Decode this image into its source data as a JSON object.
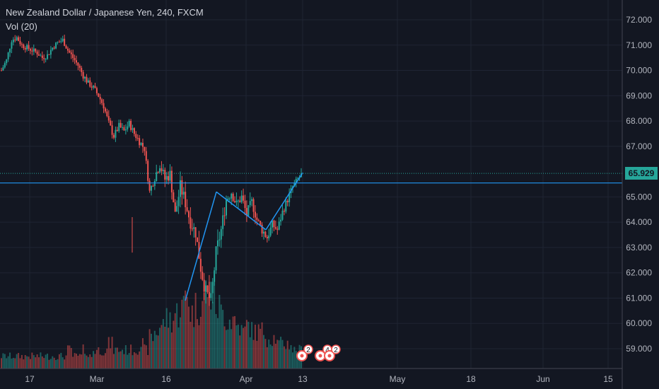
{
  "legend": {
    "title": "New Zealand Dollar / Japanese Yen, 240, FXCM",
    "volume": "Vol (20)"
  },
  "price_label": {
    "value": "65.929",
    "color": "#26a69a"
  },
  "events": {
    "badge1": "2",
    "badge2": "4",
    "badge3": "2"
  },
  "colors": {
    "up": "#26a69a",
    "down": "#ef5350",
    "background": "#131722",
    "grid": "#1f2433",
    "line": "#2196f3"
  },
  "chart_data": {
    "type": "candlestick",
    "title": "New Zealand Dollar / Japanese Yen, 240, FXCM",
    "y_axis": {
      "ticks": [
        "72.000",
        "71.000",
        "70.000",
        "69.000",
        "68.000",
        "67.000",
        "65.000",
        "64.000",
        "63.000",
        "62.000",
        "61.000",
        "60.000",
        "59.000"
      ],
      "range": [
        58.5,
        72.5
      ]
    },
    "x_axis": {
      "ticks": [
        "17",
        "Mar",
        "16",
        "Apr",
        "13",
        "May",
        "18",
        "Jun",
        "15"
      ]
    },
    "last_price": 65.929,
    "horizontal_line": 65.55,
    "trend_lines": [
      {
        "points": [
          [
            61.0,
            "Mar 19"
          ],
          [
            65.2,
            "Mar 24"
          ]
        ]
      },
      {
        "points": [
          [
            65.2,
            "Mar 24"
          ],
          [
            63.7,
            "Apr 6"
          ]
        ]
      },
      {
        "points": [
          [
            63.7,
            "Apr 6"
          ],
          [
            65.95,
            "Apr 13"
          ]
        ]
      }
    ],
    "close_series": [
      70.0,
      70.4,
      71.2,
      71.3,
      71.0,
      70.9,
      70.8,
      70.7,
      70.5,
      70.6,
      70.9,
      71.1,
      71.2,
      70.8,
      70.5,
      70.2,
      69.8,
      69.5,
      69.3,
      69.0,
      68.6,
      67.9,
      67.4,
      67.8,
      67.6,
      67.9,
      67.5,
      67.2,
      66.9,
      65.2,
      65.8,
      66.3,
      65.7,
      65.9,
      64.3,
      65.4,
      64.8,
      64.0,
      63.6,
      62.2,
      61.2,
      60.9,
      62.8,
      63.7,
      64.9,
      65.2,
      64.7,
      65.0,
      64.3,
      64.8,
      64.1,
      63.7,
      63.4,
      63.9,
      63.7,
      64.4,
      64.9,
      65.4,
      65.7,
      65.95
    ],
    "volume_series": [
      2,
      2,
      2,
      2,
      2,
      2,
      2,
      2,
      2,
      2,
      2,
      2,
      2,
      3,
      2,
      2,
      3,
      2,
      3,
      3,
      3,
      4,
      3,
      3,
      3,
      3,
      3,
      4,
      3,
      5,
      6,
      7,
      8,
      8,
      9,
      10,
      12,
      9,
      10,
      11,
      13,
      12,
      10,
      9,
      8,
      8,
      7,
      6,
      7,
      6,
      6,
      6,
      5,
      5,
      4,
      4,
      4,
      3,
      3,
      3
    ]
  }
}
